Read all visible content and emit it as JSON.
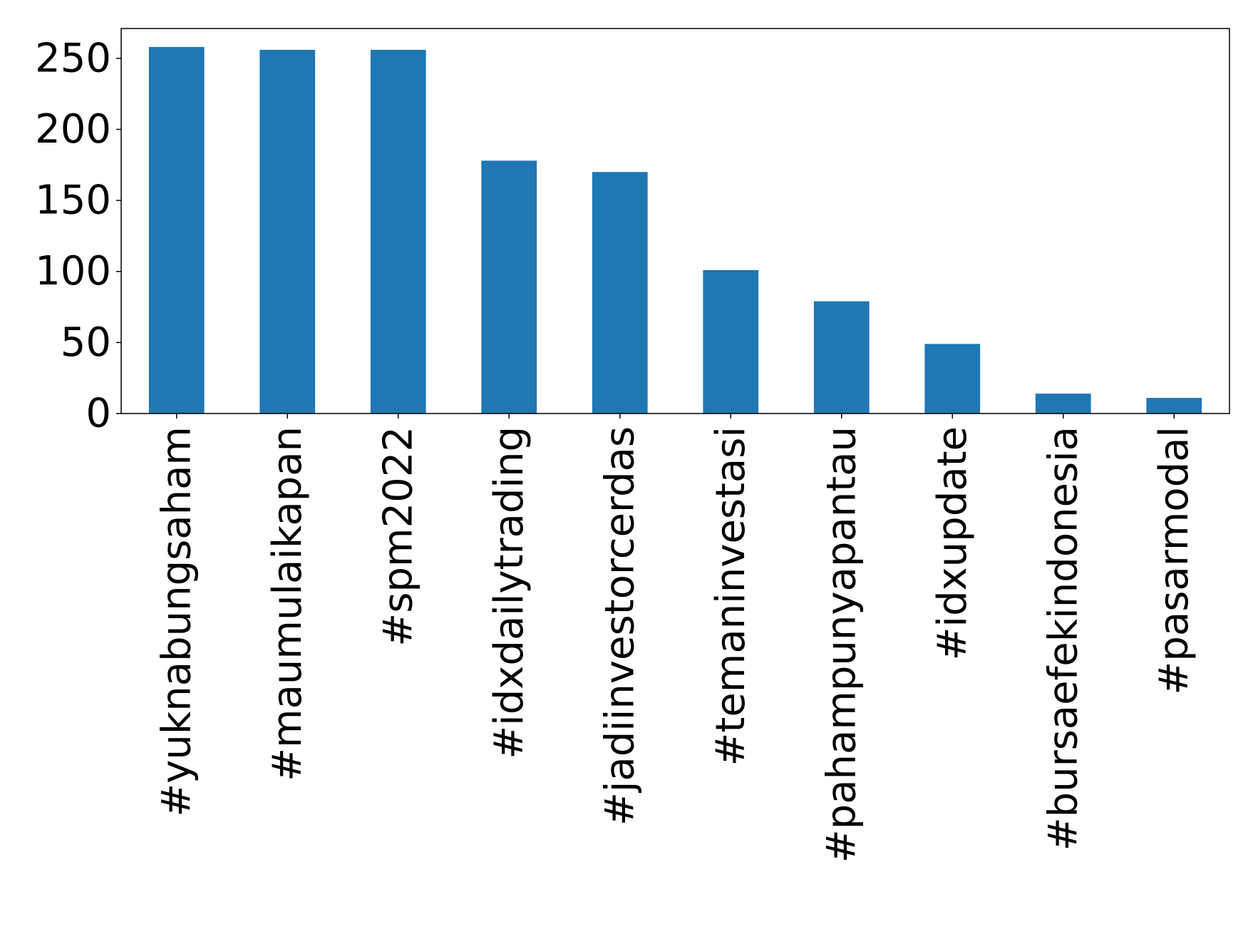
{
  "chart_data": {
    "type": "bar",
    "categories": [
      "#yuknabungsaham",
      "#maumulaikapan",
      "#spm2022",
      "#idxdailytrading",
      "#jadiinvestorcerdas",
      "#temaninvestasi",
      "#pahampunyapantau",
      "#idxupdate",
      "#bursaefekindonesia",
      "#pasarmodal"
    ],
    "values": [
      258,
      256,
      256,
      178,
      170,
      101,
      79,
      49,
      14,
      11
    ],
    "title": "",
    "xlabel": "",
    "ylabel": "",
    "ylim": [
      0,
      271
    ],
    "yticks": [
      0,
      50,
      100,
      150,
      200,
      250
    ],
    "grid": false,
    "legend": "none",
    "colors": {
      "bar": "#1f77b4",
      "axis": "#000000",
      "background": "#ffffff"
    }
  }
}
